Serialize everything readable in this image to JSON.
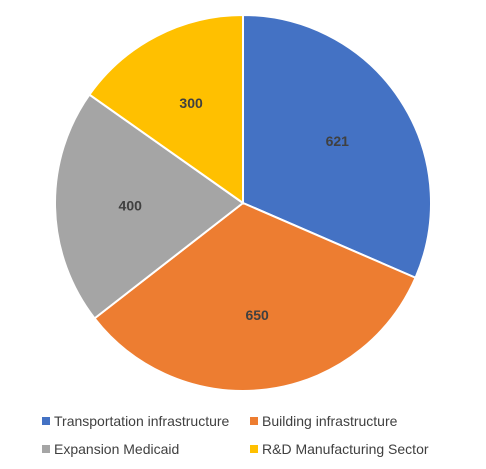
{
  "chart_data": {
    "type": "pie",
    "categories": [
      "Transportation infrastructure",
      "Building infrastructure",
      "Expansion Medicaid",
      "R&D Manufacturing Sector"
    ],
    "values": [
      621,
      650,
      400,
      300
    ],
    "data_labels": [
      "621",
      "650",
      "400",
      "300"
    ],
    "colors": [
      "#4472C4",
      "#ED7D31",
      "#A5A5A5",
      "#FFC000"
    ],
    "start_angle": "12 o'clock",
    "direction": "clockwise",
    "legend_placement": "bottom",
    "title": ""
  }
}
